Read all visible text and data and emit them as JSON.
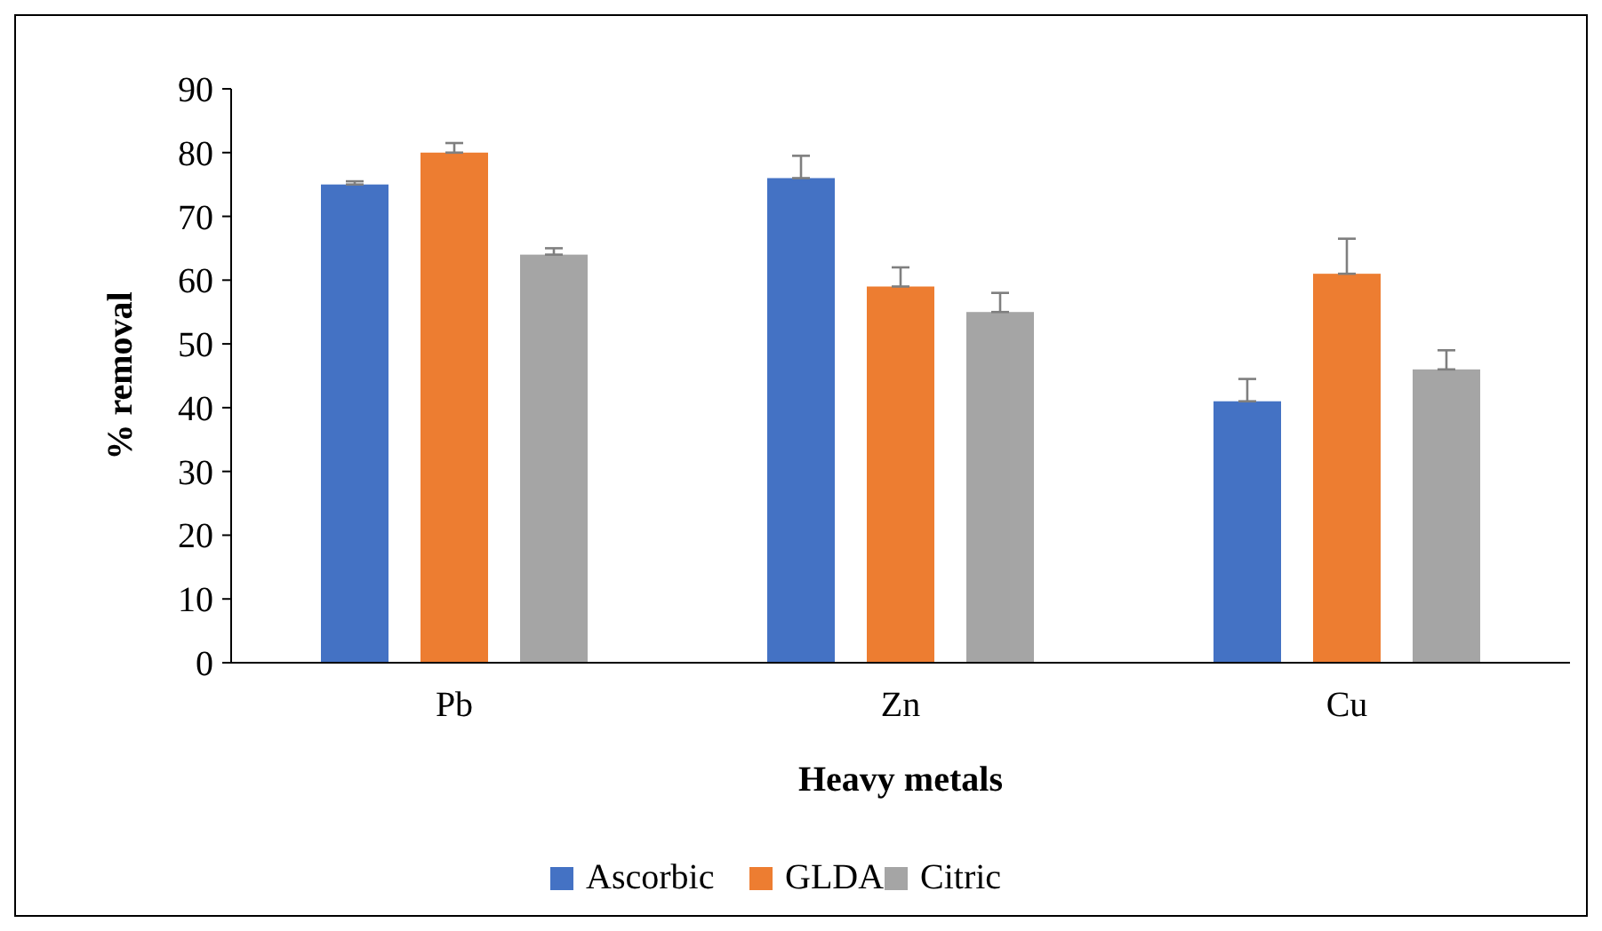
{
  "chart_data": {
    "type": "bar",
    "xlabel": "Heavy metals",
    "ylabel": "% removal",
    "categories": [
      "Pb",
      "Zn",
      "Cu"
    ],
    "series": [
      {
        "name": "Ascorbic",
        "color": "#4472c4",
        "values": [
          75,
          76,
          41
        ],
        "errors": [
          [
            75,
            75.5
          ],
          [
            76,
            79.5
          ],
          [
            41,
            44.5
          ]
        ]
      },
      {
        "name": "GLDA",
        "color": "#ed7d31",
        "values": [
          80,
          59,
          61
        ],
        "errors": [
          [
            80,
            81.5
          ],
          [
            59,
            62
          ],
          [
            61,
            66.5
          ]
        ]
      },
      {
        "name": "Citric",
        "color": "#a5a5a5",
        "values": [
          64,
          55,
          46
        ],
        "errors": [
          [
            64,
            65
          ],
          [
            55,
            58
          ],
          [
            46,
            49
          ]
        ]
      }
    ],
    "ylim": [
      0,
      90
    ],
    "yticks": [
      0,
      10,
      20,
      30,
      40,
      50,
      60,
      70,
      80,
      90
    ],
    "legend": "bottom",
    "grid": false
  }
}
